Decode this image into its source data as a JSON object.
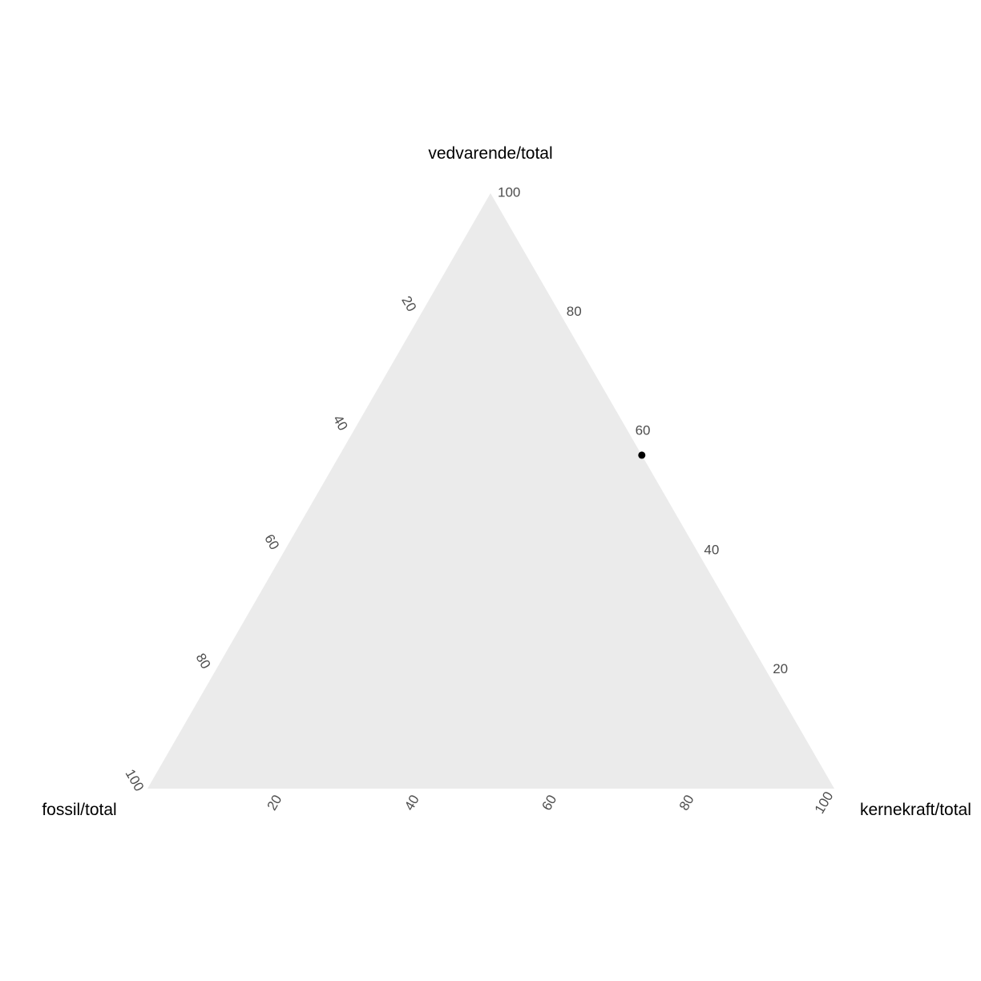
{
  "chart_data": {
    "type": "scatter",
    "subtype": "ternary",
    "title": "",
    "axes": {
      "top": {
        "label": "vedvarende/total",
        "ticks": [
          "20",
          "40",
          "60",
          "80",
          "100"
        ]
      },
      "left": {
        "label": "fossil/total",
        "ticks": [
          "20",
          "40",
          "60",
          "80",
          "100"
        ]
      },
      "right": {
        "label": "kernekraft/total",
        "ticks": [
          "20",
          "40",
          "60",
          "80",
          "100"
        ]
      }
    },
    "points": [
      {
        "fossil": 0,
        "vedvarende": 56,
        "kernekraft": 44
      }
    ],
    "background_color": "#ebebeb",
    "point_color": "#000000",
    "grid": false,
    "legend": "none"
  }
}
